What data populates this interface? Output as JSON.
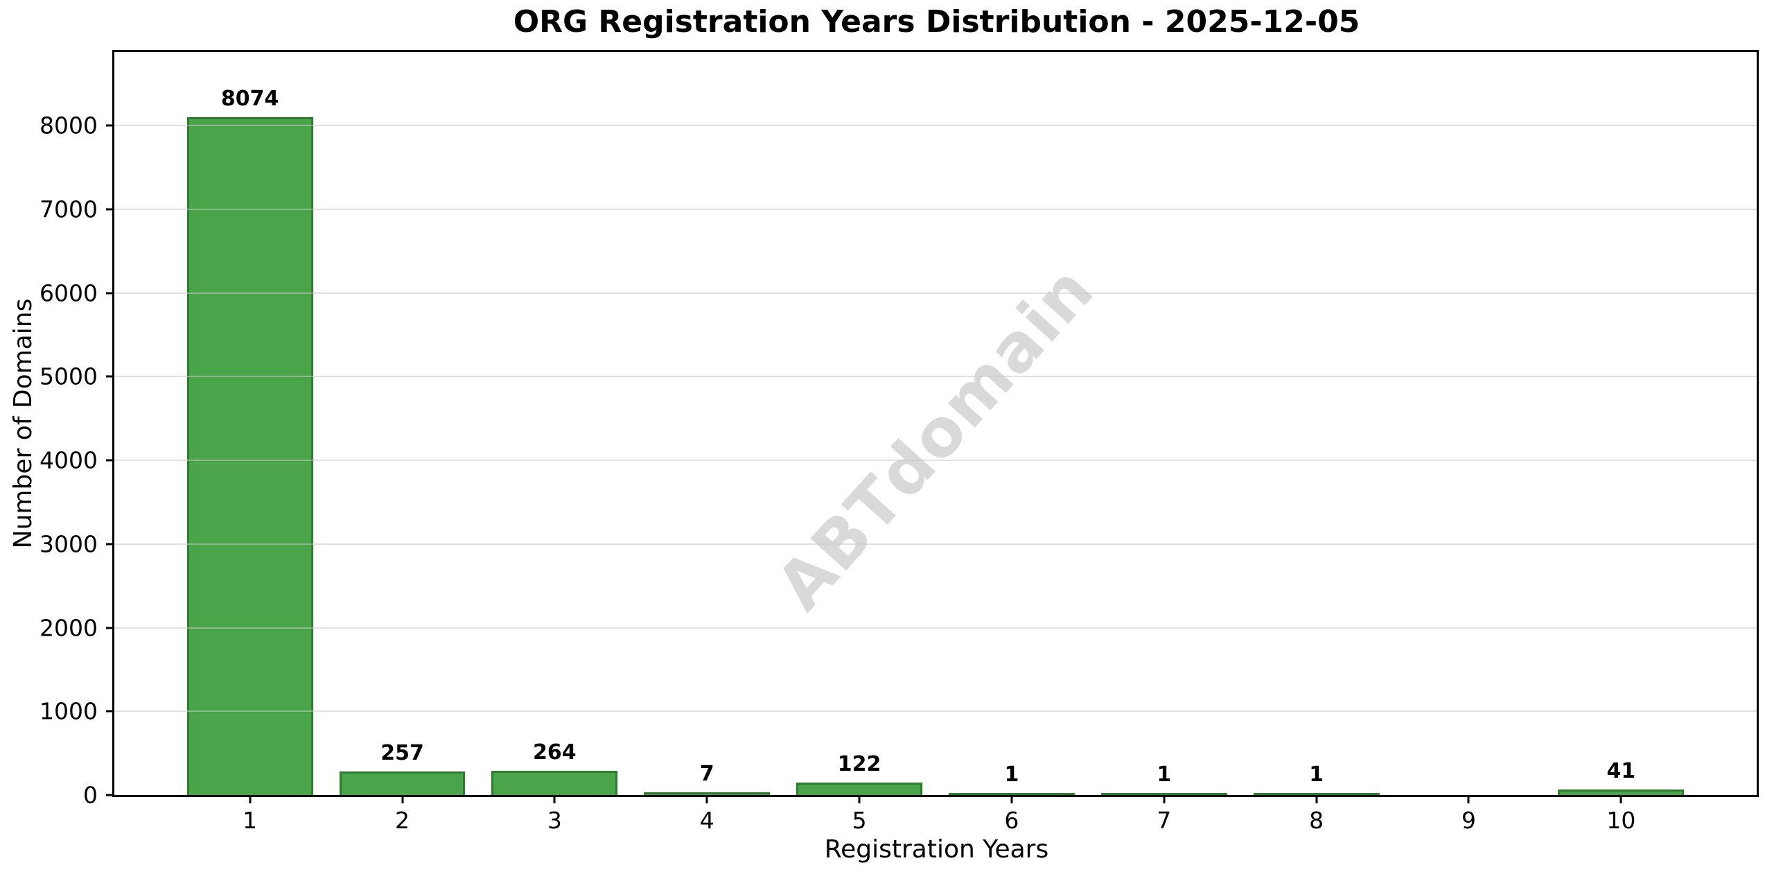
{
  "chart_data": {
    "type": "bar",
    "title": "ORG Registration Years Distribution - 2025-12-05",
    "xlabel": "Registration Years",
    "ylabel": "Number of Domains",
    "watermark": "ABTdomain",
    "categories": [
      "1",
      "2",
      "3",
      "4",
      "5",
      "6",
      "7",
      "8",
      "9",
      "10"
    ],
    "values": [
      8074,
      257,
      264,
      7,
      122,
      1,
      1,
      1,
      0,
      41
    ],
    "bar_labels": [
      "8074",
      "257",
      "264",
      "7",
      "122",
      "1",
      "1",
      "1",
      "",
      "41"
    ],
    "yticks": [
      0,
      1000,
      2000,
      3000,
      4000,
      5000,
      6000,
      7000,
      8000
    ],
    "ylim": [
      0,
      8880
    ],
    "xlim": [
      0.11,
      10.89
    ],
    "bar_width": 0.8,
    "grid": "horizontal-light-over-bars",
    "legend": "none",
    "colors": {
      "bar_fill": "#4aa44a",
      "bar_edge": "#2e7d2e",
      "grid": "rgba(200,200,200,0.55)",
      "watermark": "#d9d9d9",
      "text": "#000000",
      "background": "#ffffff"
    }
  }
}
